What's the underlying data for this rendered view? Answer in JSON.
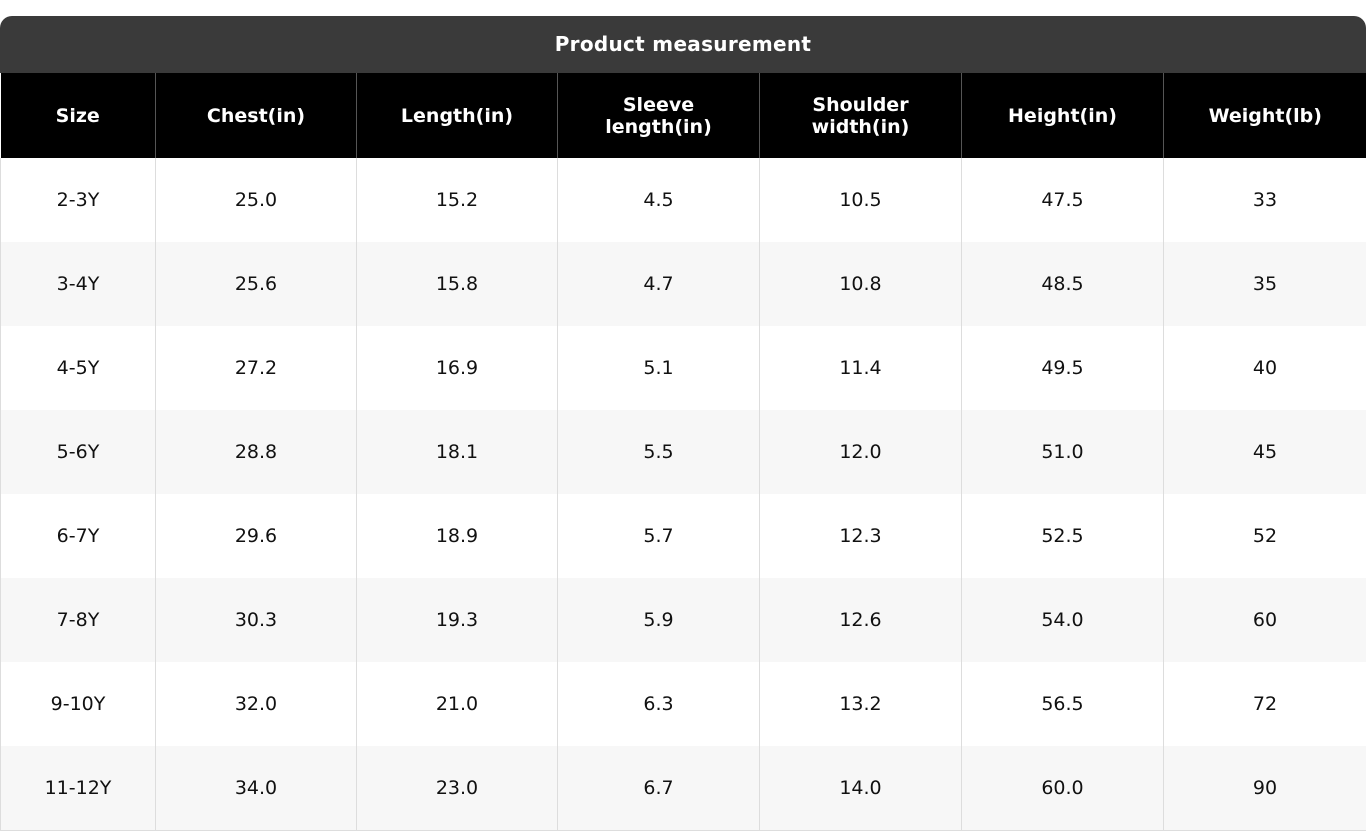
{
  "table": {
    "title": "Product measurement",
    "headers": [
      "Size",
      "Chest(in)",
      "Length(in)",
      "Sleeve length(in)",
      "Shoulder width(in)",
      "Height(in)",
      "Weight(lb)"
    ],
    "rows": [
      [
        "2-3Y",
        "25.0",
        "15.2",
        "4.5",
        "10.5",
        "47.5",
        "33"
      ],
      [
        "3-4Y",
        "25.6",
        "15.8",
        "4.7",
        "10.8",
        "48.5",
        "35"
      ],
      [
        "4-5Y",
        "27.2",
        "16.9",
        "5.1",
        "11.4",
        "49.5",
        "40"
      ],
      [
        "5-6Y",
        "28.8",
        "18.1",
        "5.5",
        "12.0",
        "51.0",
        "45"
      ],
      [
        "6-7Y",
        "29.6",
        "18.9",
        "5.7",
        "12.3",
        "52.5",
        "52"
      ],
      [
        "7-8Y",
        "30.3",
        "19.3",
        "5.9",
        "12.6",
        "54.0",
        "60"
      ],
      [
        "9-10Y",
        "32.0",
        "21.0",
        "6.3",
        "13.2",
        "56.5",
        "72"
      ],
      [
        "11-12Y",
        "34.0",
        "23.0",
        "6.7",
        "14.0",
        "60.0",
        "90"
      ]
    ]
  }
}
